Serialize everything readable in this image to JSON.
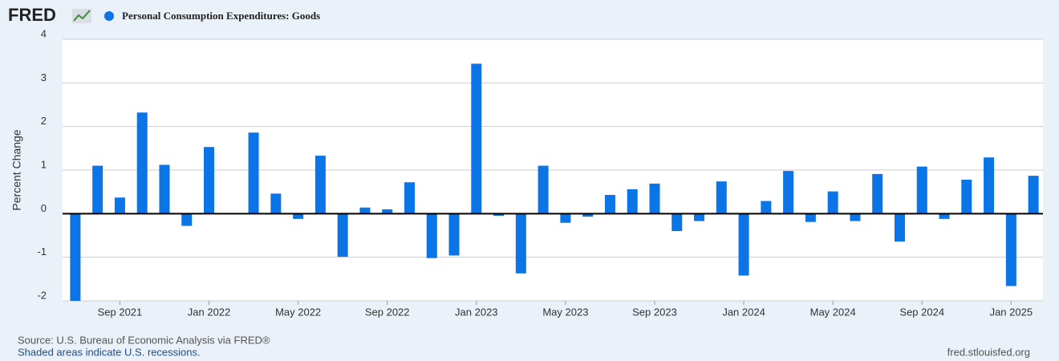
{
  "header": {
    "logo": "FRED"
  },
  "chart_data": {
    "type": "bar",
    "ylabel": "Percent Change",
    "categories": [
      null,
      null,
      "Sep 2021",
      null,
      null,
      null,
      "Jan 2022",
      null,
      null,
      null,
      "May 2022",
      null,
      null,
      null,
      "Sep 2022",
      null,
      null,
      null,
      "Jan 2023",
      null,
      null,
      null,
      "May 2023",
      null,
      null,
      null,
      "Sep 2023",
      null,
      null,
      null,
      "Jan 2024",
      null,
      null,
      null,
      "May 2024",
      null,
      null,
      null,
      "Sep 2024",
      null,
      null,
      null,
      "Jan 2025",
      null
    ],
    "series": [
      {
        "name": "Personal Consumption Expenditures: Goods",
        "color": "#0b74e6",
        "values": [
          -2.0,
          1.1,
          0.37,
          2.32,
          1.12,
          -0.28,
          1.53,
          0,
          1.86,
          0.46,
          -0.12,
          1.33,
          -0.99,
          0.14,
          0.1,
          0.72,
          -1.02,
          -0.96,
          3.44,
          -0.05,
          -1.37,
          1.1,
          -0.21,
          -0.07,
          0.43,
          0.56,
          0.69,
          -0.4,
          -0.17,
          0.74,
          -1.42,
          0.29,
          0.98,
          -0.19,
          0.51,
          -0.17,
          0.91,
          -0.64,
          1.08,
          -0.12,
          0.78,
          1.29,
          -1.66,
          0.87
        ]
      }
    ],
    "ylim": [
      -2,
      4
    ],
    "yticks": [
      -2,
      -1,
      0,
      1,
      2,
      3,
      4
    ],
    "grid": true
  },
  "footer": {
    "source": "Source: U.S. Bureau of Economic Analysis via FRED®",
    "note": "Shaded areas indicate U.S. recessions.",
    "url": "fred.stlouisfed.org"
  }
}
